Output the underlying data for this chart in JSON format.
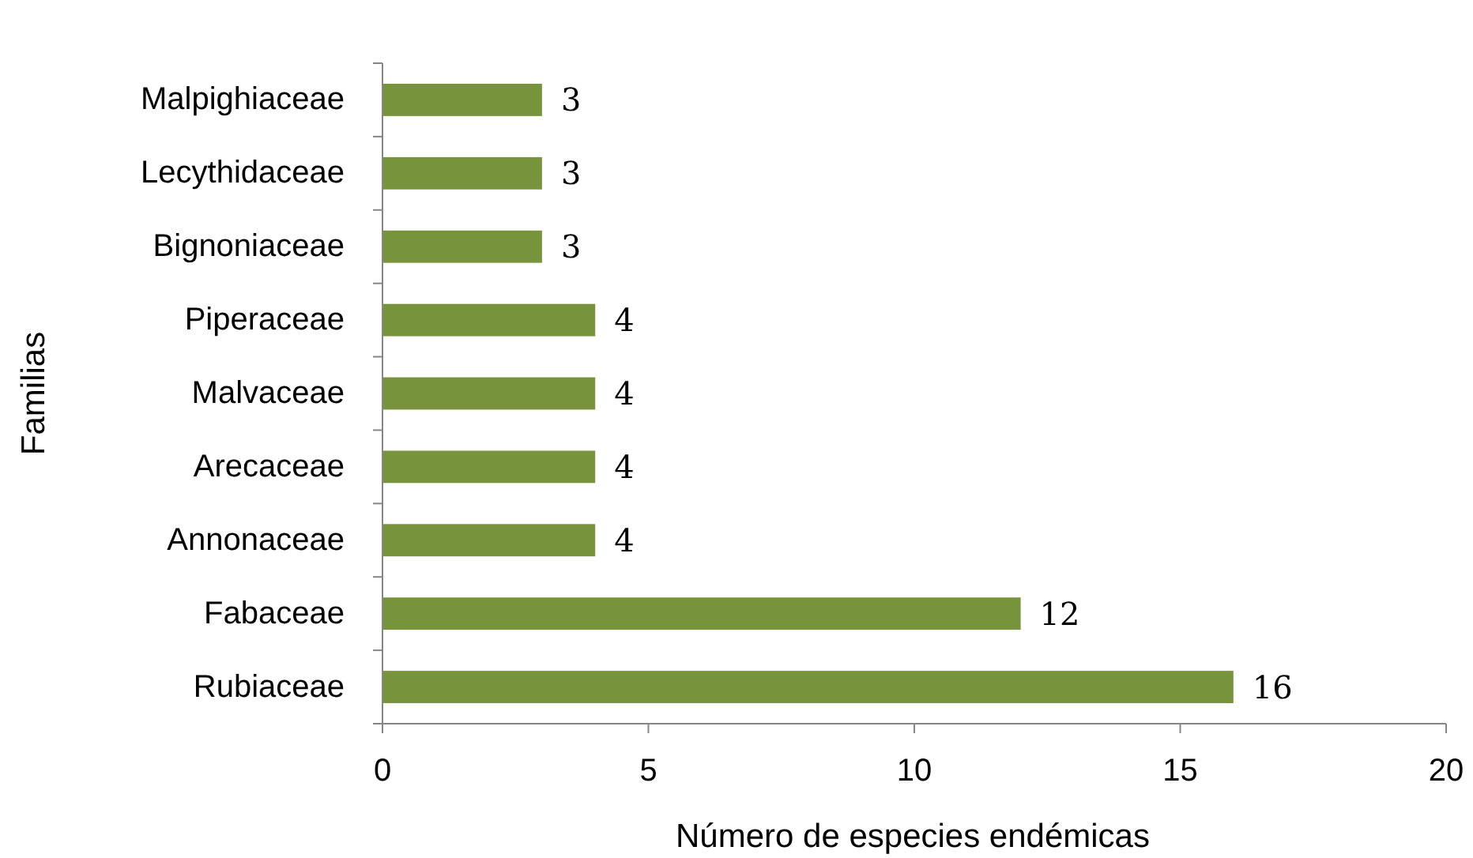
{
  "chart_data": {
    "type": "bar",
    "orientation": "horizontal",
    "xlabel": "Número de especies endémicas",
    "ylabel": "Familias",
    "categories": [
      "Malpighiaceae",
      "Lecythidaceae",
      "Bignoniaceae",
      "Piperaceae",
      "Malvaceae",
      "Arecaceae",
      "Annonaceae",
      "Fabaceae",
      "Rubiaceae"
    ],
    "values": [
      3,
      3,
      3,
      4,
      4,
      4,
      4,
      12,
      16
    ],
    "color": "#77933c",
    "data_labels": true,
    "xlim": [
      0,
      20
    ],
    "xticks": [
      0,
      5,
      10,
      15,
      20
    ],
    "grid": false
  }
}
